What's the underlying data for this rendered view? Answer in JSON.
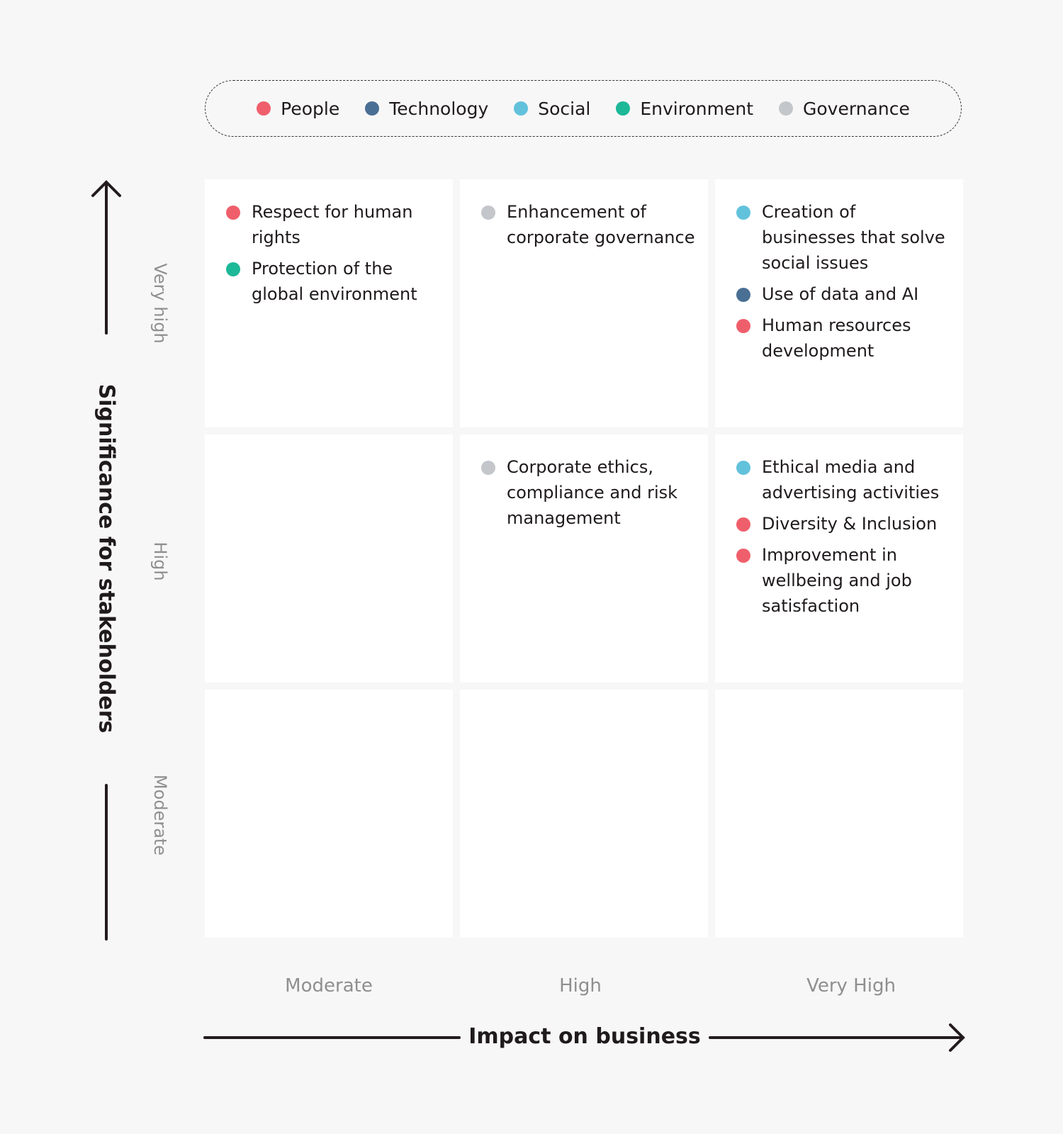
{
  "legend": [
    {
      "label": "People",
      "color": "#ef5f6b"
    },
    {
      "label": "Technology",
      "color": "#4a6f94"
    },
    {
      "label": "Social",
      "color": "#62c2dc"
    },
    {
      "label": "Environment",
      "color": "#1db898"
    },
    {
      "label": "Governance",
      "color": "#c3c6ca"
    }
  ],
  "y_axis": {
    "title": "Significance for stakeholders",
    "levels": [
      "Very high",
      "High",
      "Moderate"
    ]
  },
  "x_axis": {
    "title": "Impact on business",
    "levels": [
      "Moderate",
      "High",
      "Very High"
    ]
  },
  "matrix": [
    [
      [
        {
          "text": "Respect for human rights",
          "category": "People"
        },
        {
          "text": "Protection of the global environment",
          "category": "Environment"
        }
      ],
      [
        {
          "text": "Enhancement of corporate governance",
          "category": "Governance"
        }
      ],
      [
        {
          "text": "Creation of businesses that solve social issues",
          "category": "Social"
        },
        {
          "text": "Use of data and AI",
          "category": "Technology"
        },
        {
          "text": "Human resources development",
          "category": "People"
        }
      ]
    ],
    [
      [],
      [
        {
          "text": "Corporate ethics, compliance and risk management",
          "category": "Governance"
        }
      ],
      [
        {
          "text": "Ethical media and advertising activities",
          "category": "Social"
        },
        {
          "text": "Diversity & Inclusion",
          "category": "People"
        },
        {
          "text": "Improvement in wellbeing and job satisfaction",
          "category": "People"
        }
      ]
    ],
    [
      [],
      [],
      []
    ]
  ]
}
